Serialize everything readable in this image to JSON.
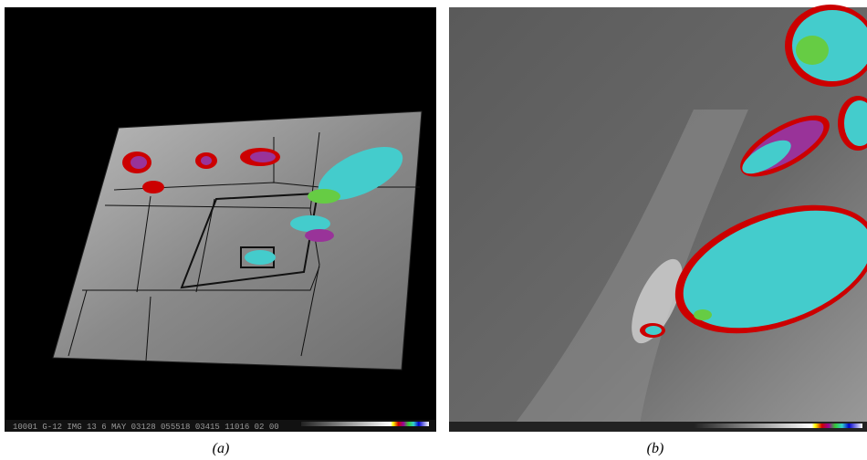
{
  "panels": [
    {
      "label": "(a)",
      "info_bar": "10001 G-12 IMG 13 6 MAY 03128 055518 03415 11016 02 00"
    },
    {
      "label": "(b)"
    }
  ]
}
